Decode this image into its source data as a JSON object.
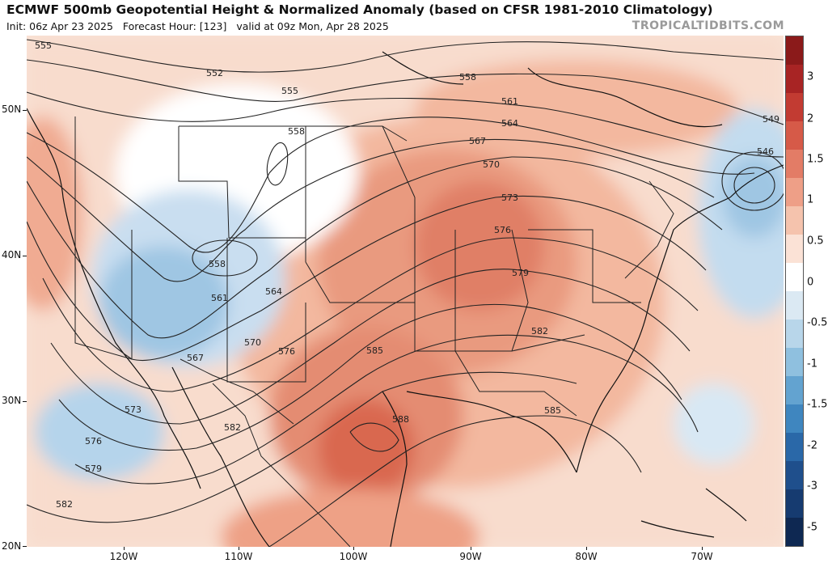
{
  "header": {
    "title": "ECMWF 500mb Geopotential Height & Normalized Anomaly (based on CFSR 1981-2010 Climatology)",
    "init": "Init: 06z Apr 23 2025",
    "forecast_hour": "Forecast Hour: [123]",
    "valid": "valid at 09z Mon, Apr 28 2025",
    "watermark": "TROPICALTIDBITS.COM"
  },
  "axes": {
    "lat_labels": [
      "50N",
      "40N",
      "30N",
      "20N"
    ],
    "lon_labels": [
      "120W",
      "110W",
      "100W",
      "90W",
      "80W",
      "70W"
    ]
  },
  "colorbar": {
    "labels": [
      "3",
      "2",
      "1.5",
      "1",
      "0.5",
      "0",
      "-0.5",
      "-1",
      "-1.5",
      "-2",
      "-3",
      "-5"
    ],
    "colors": [
      "#8b1a1a",
      "#a82424",
      "#c23b32",
      "#d65a48",
      "#e37c66",
      "#ee9f87",
      "#f5c3ad",
      "#fbe2d6",
      "#ffffff",
      "#dbe9f3",
      "#b8d6ea",
      "#8fc0df",
      "#63a3d0",
      "#3f86bf",
      "#2a68a8",
      "#1f4f8c",
      "#163b70",
      "#0e2852"
    ]
  },
  "contours": {
    "labels": [
      "555",
      "552",
      "555",
      "558",
      "561",
      "564",
      "567",
      "570",
      "573",
      "576",
      "579",
      "582",
      "585",
      "588",
      "558",
      "558",
      "561",
      "564",
      "567",
      "570",
      "576",
      "573",
      "576",
      "579",
      "582",
      "582",
      "549",
      "546",
      "585"
    ]
  }
}
